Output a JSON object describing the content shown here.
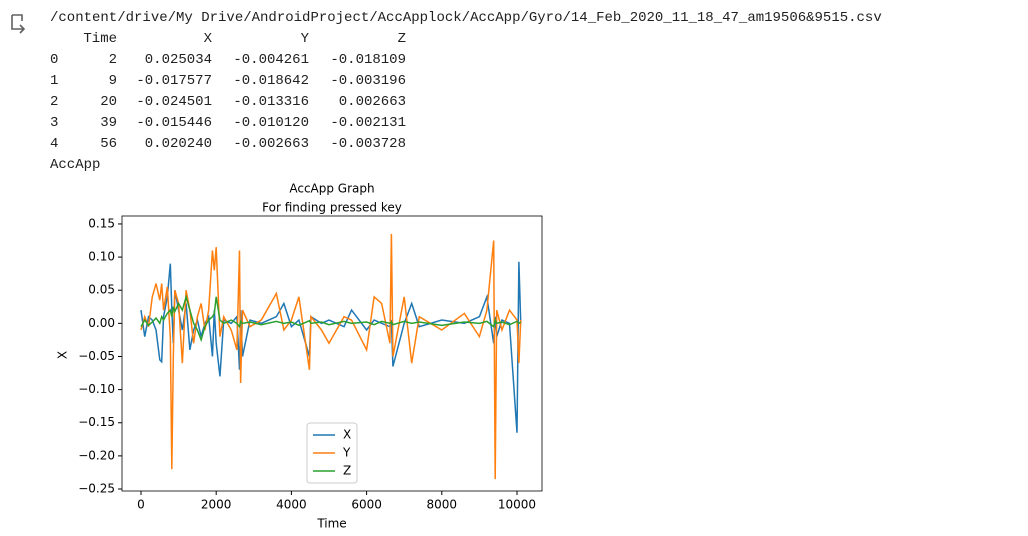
{
  "output": {
    "path": "/content/drive/My Drive/AndroidProject/AccApplock/AccApp/Gyro/14_Feb_2020_11_18_47_am19506&9515.csv",
    "table": {
      "header": [
        "Time",
        "X",
        "Y",
        "Z"
      ],
      "rows": [
        [
          "0",
          "2",
          "0.025034",
          "-0.004261",
          "-0.018109"
        ],
        [
          "1",
          "9",
          "-0.017577",
          "-0.018642",
          "-0.003196"
        ],
        [
          "2",
          "20",
          "-0.024501",
          "-0.013316",
          "0.002663"
        ],
        [
          "3",
          "39",
          "-0.015446",
          "-0.010120",
          "-0.002131"
        ],
        [
          "4",
          "56",
          "0.020240",
          "-0.002663",
          "-0.003728"
        ]
      ]
    },
    "label": "AccApp"
  },
  "chart_data": {
    "type": "line",
    "title": "AccApp Graph",
    "subtitle": "For finding pressed key",
    "x_label": "Time",
    "y_label": "X",
    "x": [
      0,
      100,
      200,
      300,
      400,
      500,
      550,
      600,
      700,
      780,
      820,
      860,
      900,
      1000,
      1100,
      1200,
      1300,
      1400,
      1500,
      1600,
      1700,
      1800,
      1900,
      1950,
      2000,
      2100,
      2200,
      2400,
      2550,
      2620,
      2650,
      2700,
      2900,
      3200,
      3600,
      3800,
      4000,
      4200,
      4480,
      4520,
      4800,
      5000,
      5400,
      5600,
      6000,
      6200,
      6400,
      6620,
      6660,
      6700,
      7000,
      7200,
      7400,
      8000,
      8600,
      9000,
      9200,
      9380,
      9420,
      9460,
      9600,
      9800,
      10000,
      10050,
      10100
    ],
    "series": [
      {
        "name": "X",
        "color": "#1f77b4",
        "values": [
          0.02,
          -0.02,
          0.01,
          0.005,
          -0.01,
          -0.055,
          -0.058,
          0.01,
          0.04,
          0.09,
          0.02,
          -0.03,
          0.05,
          0.02,
          -0.01,
          0.03,
          -0.04,
          -0.01,
          0.005,
          -0.02,
          0.0,
          0.01,
          -0.05,
          0.02,
          -0.03,
          -0.08,
          0.005,
          0.0,
          0.01,
          -0.07,
          0.02,
          -0.05,
          0.005,
          0.0,
          0.01,
          0.03,
          -0.005,
          0.005,
          -0.05,
          0.01,
          0.0,
          0.005,
          -0.005,
          0.02,
          -0.01,
          0.005,
          0.0,
          -0.005,
          0.005,
          -0.065,
          0.0,
          0.03,
          -0.005,
          0.005,
          0.0,
          0.01,
          0.04,
          -0.03,
          0.01,
          -0.02,
          0.005,
          0.0,
          -0.165,
          0.093,
          0.0
        ]
      },
      {
        "name": "Y",
        "color": "#ff7f0e",
        "values": [
          -0.01,
          0.01,
          -0.005,
          0.04,
          0.06,
          0.035,
          0.06,
          0.02,
          0.055,
          -0.02,
          -0.22,
          -0.05,
          0.05,
          0.03,
          -0.06,
          0.05,
          0.02,
          -0.03,
          0.01,
          0.03,
          -0.01,
          0.02,
          0.11,
          0.08,
          0.115,
          -0.02,
          0.01,
          -0.01,
          -0.04,
          0.11,
          -0.09,
          0.02,
          -0.005,
          0.005,
          0.045,
          -0.01,
          0.005,
          0.04,
          -0.07,
          0.01,
          -0.01,
          -0.03,
          0.01,
          0.005,
          -0.04,
          0.04,
          0.03,
          -0.03,
          0.135,
          -0.05,
          0.04,
          -0.06,
          0.01,
          -0.01,
          0.015,
          -0.02,
          0.02,
          0.125,
          -0.235,
          0.02,
          -0.01,
          0.02,
          0.005,
          -0.06,
          0.005
        ]
      },
      {
        "name": "Z",
        "color": "#2ca02c",
        "values": [
          -0.005,
          0.005,
          -0.003,
          0.002,
          0.008,
          0.0,
          0.01,
          0.005,
          0.015,
          0.02,
          0.01,
          0.025,
          0.018,
          0.03,
          0.02,
          0.04,
          0.02,
          0.0,
          -0.01,
          -0.025,
          -0.005,
          0.005,
          0.01,
          0.015,
          0.04,
          0.005,
          0.0,
          0.005,
          0.0,
          -0.005,
          0.003,
          0.0,
          0.002,
          -0.002,
          0.003,
          0.0,
          0.002,
          -0.003,
          0.004,
          0.0,
          0.002,
          -0.002,
          0.003,
          0.0,
          0.002,
          -0.002,
          0.003,
          0.0,
          0.002,
          -0.002,
          0.003,
          0.0,
          0.002,
          -0.003,
          0.002,
          0.0,
          0.003,
          -0.005,
          0.005,
          0.0,
          0.002,
          -0.002,
          0.003,
          0.0,
          0.002
        ]
      }
    ],
    "xlim": [
      -505,
      10665
    ],
    "ylim": [
      -0.253,
      0.162
    ],
    "xticks": [
      0,
      2000,
      4000,
      6000,
      8000,
      10000
    ],
    "yticks": [
      0.15,
      {
        "value": 0.1,
        "label": "0.10"
      },
      0.05,
      {
        "value": 0,
        "label": "0.00"
      },
      {
        "value": -0.05,
        "label": "−0.05"
      },
      {
        "value": -0.1,
        "label": "−0.10"
      },
      {
        "value": -0.15,
        "label": "−0.15"
      },
      {
        "value": -0.2,
        "label": "−0.20"
      },
      {
        "value": -0.25,
        "label": "−0.25"
      }
    ],
    "legend": "lower center"
  }
}
